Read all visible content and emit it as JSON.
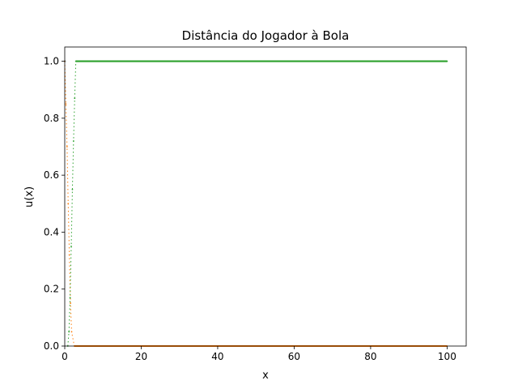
{
  "chart_data": {
    "type": "line",
    "title": "Distância do Jogador à Bola",
    "xlabel": "x",
    "ylabel": "u(x)",
    "xlim": [
      0,
      105
    ],
    "ylim": [
      0,
      1.05
    ],
    "xticks": [
      0,
      20,
      40,
      60,
      80,
      100
    ],
    "yticks": [
      0.0,
      0.2,
      0.4,
      0.6,
      0.8,
      1.0
    ],
    "xtick_labels": [
      "0",
      "20",
      "40",
      "60",
      "80",
      "100"
    ],
    "ytick_labels": [
      "0.0",
      "0.2",
      "0.4",
      "0.6",
      "0.8",
      "1.0"
    ],
    "grid": false,
    "legend": "none",
    "series": [
      {
        "color": "#1f77b4",
        "style": "solid",
        "x": [
          0,
          0.1
        ],
        "y": [
          1.0,
          1.0
        ]
      },
      {
        "color": "#ff7f0e",
        "style": "dotted",
        "x": [
          0,
          0.3,
          0.6,
          0.9,
          1.2,
          1.5,
          1.8,
          2.5,
          100
        ],
        "y": [
          1.0,
          0.85,
          0.7,
          0.5,
          0.32,
          0.15,
          0.05,
          0.0,
          0.0
        ]
      },
      {
        "color": "#2ca02c",
        "style": "dotted-then-solid",
        "x": [
          0.8,
          1.1,
          1.4,
          1.7,
          2.0,
          2.3,
          2.6,
          2.9,
          100
        ],
        "y": [
          0.0,
          0.05,
          0.17,
          0.35,
          0.55,
          0.72,
          0.87,
          1.0,
          1.0
        ]
      }
    ]
  }
}
